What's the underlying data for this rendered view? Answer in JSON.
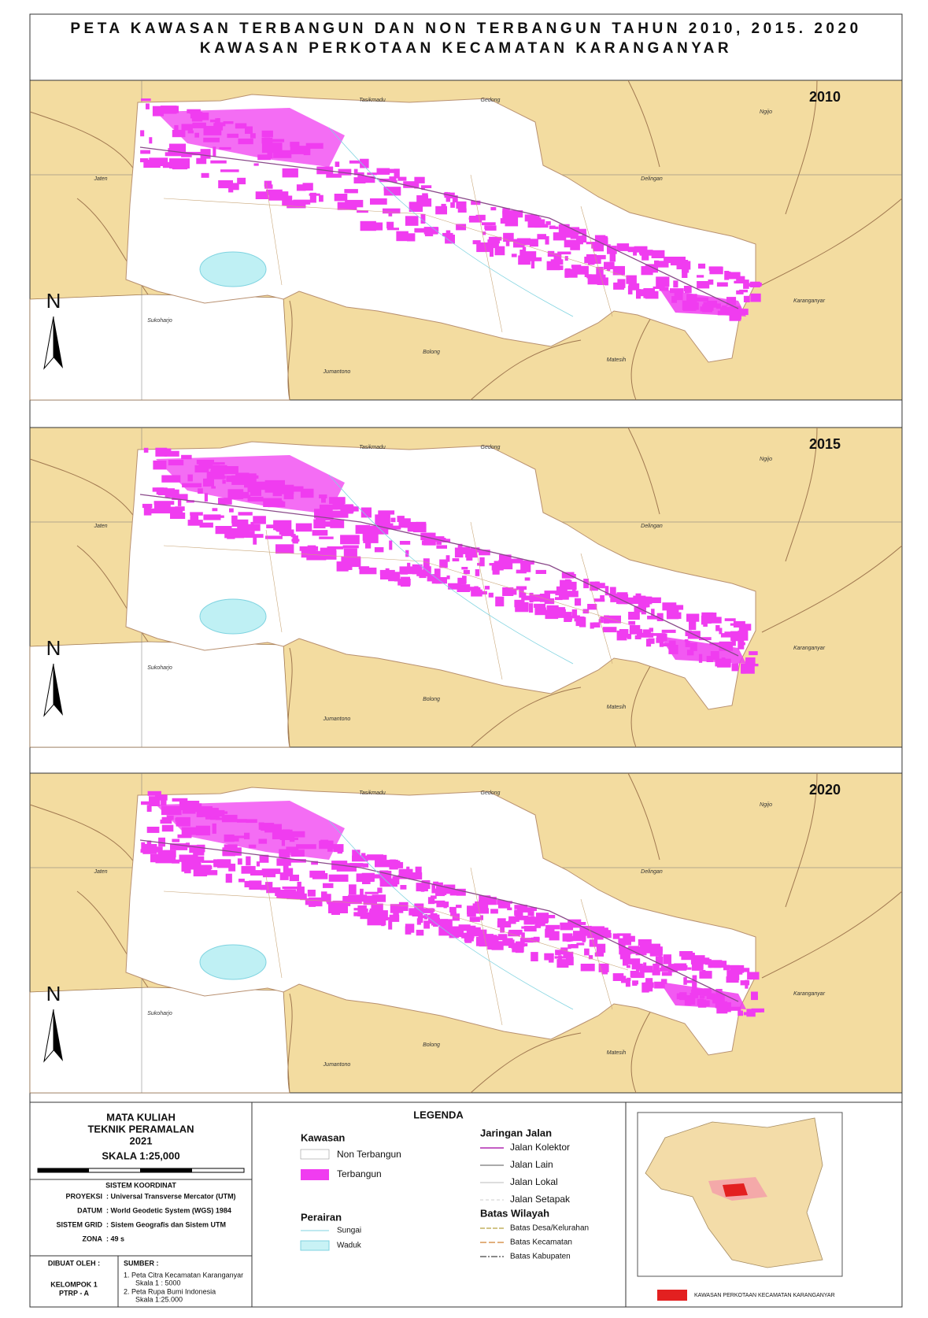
{
  "title": [
    "PETA KAWASAN TERBANGUN DAN NON TERBANGUN TAHUN 2010, 2015. 2020",
    "KAWASAN PERKOTAAN KECAMATAN KARANGANYAR"
  ],
  "maps": [
    {
      "year": "2010",
      "north": "N",
      "places": [
        "Tasikmadu",
        "Gedong",
        "Ngijo",
        "Jaten",
        "Delingan",
        "Karanganyar",
        "Sukoharjo",
        "Jumantono",
        "Bolong",
        "Matesih"
      ]
    },
    {
      "year": "2015",
      "north": "N",
      "places": [
        "Tasikmadu",
        "Gedong",
        "Ngijo",
        "Jaten",
        "Delingan",
        "Karanganyar",
        "Sukoharjo",
        "Jumantono",
        "Bolong",
        "Matesih"
      ]
    },
    {
      "year": "2020",
      "north": "N",
      "places": [
        "Tasikmadu",
        "Gedong",
        "Ngijo",
        "Jaten",
        "Delingan",
        "Karanganyar",
        "Sukoharjo",
        "Jumantono",
        "Bolong",
        "Matesih"
      ]
    }
  ],
  "info": {
    "course": [
      "MATA KULIAH",
      "TEKNIK PERAMALAN",
      "2021"
    ],
    "scale": "SKALA 1:25,000",
    "coord_title": "SISTEM KOORDINAT",
    "coord_rows": [
      [
        "PROYEKSI",
        ": Universal Transverse Mercator (UTM)"
      ],
      [
        "DATUM",
        ": World Geodetic System (WGS) 1984"
      ],
      [
        "SISTEM GRID",
        ": Sistem Geografis dan Sistem UTM"
      ],
      [
        "ZONA",
        ": 49 s"
      ]
    ],
    "made_by_title": "DIBUAT OLEH :",
    "made_by": [
      "KELOMPOK 1",
      "PTRP - A"
    ],
    "source_title": "SUMBER :",
    "sources": [
      "1. Peta Citra Kecamatan Karanganyar",
      "Skala 1 : 5000",
      "2. Peta Rupa Bumi Indonesia",
      "Skala 1:25.000"
    ]
  },
  "legend": {
    "title": "LEGENDA",
    "kawasan": {
      "title": "Kawasan",
      "items": [
        "Non Terbangun",
        "Terbangun"
      ]
    },
    "perairan": {
      "title": "Perairan",
      "items": [
        "Sungai",
        "Waduk"
      ]
    },
    "jalan": {
      "title": "Jaringan Jalan",
      "items": [
        "Jalan Kolektor",
        "Jalan Lain",
        "Jalan Lokal",
        "Jalan Setapak"
      ]
    },
    "batas": {
      "title": "Batas Wilayah",
      "items": [
        "Batas Desa/Kelurahan",
        "Batas Kecamatan",
        "Batas Kabupaten"
      ]
    }
  },
  "inset_caption": "KAWASAN PERKOTAAN KECAMATAN KARANGANYAR"
}
